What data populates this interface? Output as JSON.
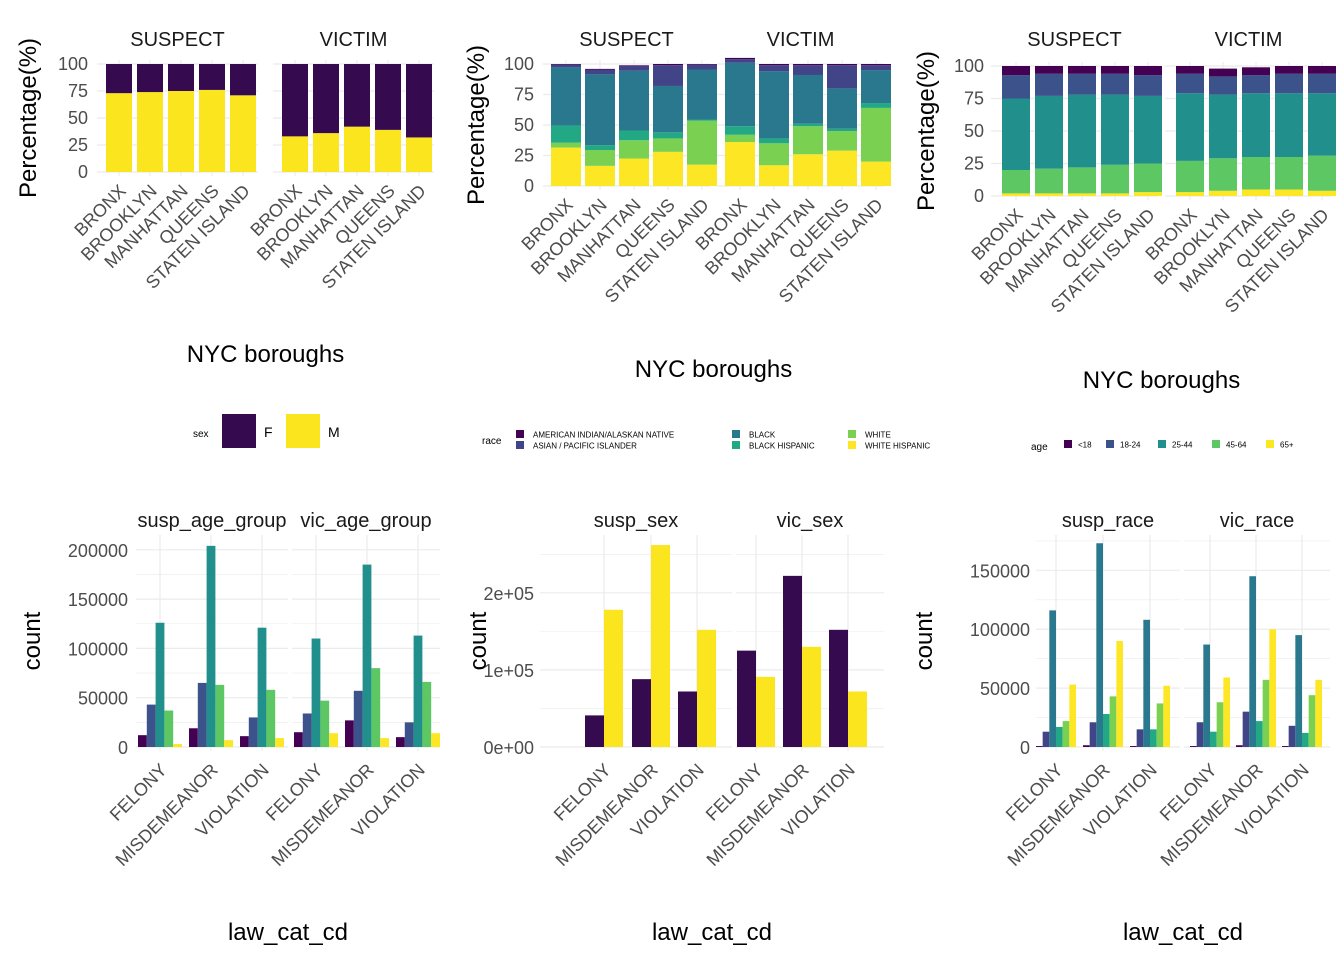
{
  "colors": {
    "sex": {
      "F": "#360A4E",
      "M": "#FAE51F"
    },
    "race": {
      "AMERICAN INDIAN/ALASKAN NATIVE": "#440154",
      "ASIAN / PACIFIC ISLANDER": "#414487",
      "BLACK": "#2A788E",
      "BLACK HISPANIC": "#22A884",
      "WHITE": "#7AD151",
      "WHITE HISPANIC": "#FDE725"
    },
    "race_bar": [
      "#440154",
      "#414487",
      "#2A788E",
      "#22A884",
      "#7AD151",
      "#FDE725"
    ],
    "age": {
      "<18": "#440154",
      "18-24": "#3B528B",
      "25-44": "#21908C",
      "45-64": "#5DC863",
      "65+": "#FDE725"
    },
    "age_bar": [
      "#440154",
      "#3B528B",
      "#21908C",
      "#5DC863",
      "#FDE725"
    ],
    "grid": "#EBEBEB"
  },
  "legends": {
    "sex": {
      "title": "sex",
      "items": [
        "F",
        "M"
      ]
    },
    "race": {
      "title": "race",
      "items": [
        "AMERICAN INDIAN/ALASKAN NATIVE",
        "ASIAN / PACIFIC ISLANDER",
        "BLACK",
        "BLACK HISPANIC",
        "WHITE",
        "WHITE HISPANIC"
      ]
    },
    "age": {
      "title": "age",
      "items": [
        "<18",
        "18-24",
        "25-44",
        "45-64",
        "65+"
      ]
    }
  },
  "chart_data": [
    {
      "type": "bar",
      "stacked": true,
      "facets": [
        "SUSPECT",
        "VICTIM"
      ],
      "categories": [
        "BRONX",
        "BROOKLYN",
        "MANHATTAN",
        "QUEENS",
        "STATEN ISLAND"
      ],
      "xlabel": "NYC boroughs",
      "ylabel": "Percentage(%)",
      "yticks": [
        "0",
        "25",
        "50",
        "75",
        "100"
      ],
      "ylim": [
        0,
        100
      ],
      "fill": "sex",
      "series": [
        {
          "name": "F",
          "values": [
            [
              27,
              26,
              25,
              24,
              29
            ],
            [
              67,
              64,
              58,
              61,
              68
            ]
          ]
        },
        {
          "name": "M",
          "values": [
            [
              73,
              74,
              75,
              76,
              71
            ],
            [
              33,
              36,
              42,
              39,
              32
            ]
          ]
        }
      ]
    },
    {
      "type": "bar",
      "stacked": true,
      "facets": [
        "SUSPECT",
        "VICTIM"
      ],
      "categories": [
        "BRONX",
        "BROOKLYN",
        "MANHATTAN",
        "QUEENS",
        "STATEN ISLAND"
      ],
      "xlabel": "NYC boroughs",
      "ylabel": "Percentage(%)",
      "yticks": [
        "0",
        "25",
        "50",
        "75",
        "100"
      ],
      "ylim": [
        0,
        100
      ],
      "fill": "race",
      "series": [
        {
          "name": "AMERICAN INDIAN/ALASKAN NATIVE",
          "values": [
            [
              0.5,
              0.5,
              0.5,
              1,
              0.5
            ],
            [
              1,
              1,
              1,
              1,
              1
            ]
          ]
        },
        {
          "name": "ASIAN / PACIFIC ISLANDER",
          "values": [
            [
              2,
              4,
              4,
              17,
              4
            ],
            [
              3,
              5,
              8,
              19,
              4
            ]
          ]
        },
        {
          "name": "BLACK",
          "values": [
            [
              48,
              58,
              49,
              38,
              41
            ],
            [
              52,
              55,
              40,
              33,
              27
            ]
          ]
        },
        {
          "name": "BLACK HISPANIC",
          "values": [
            [
              14,
              4,
              8,
              5,
              1
            ],
            [
              7,
              4,
              2,
              2,
              4
            ]
          ]
        },
        {
          "name": "WHITE",
          "values": [
            [
              4,
              13,
              15,
              11,
              36
            ],
            [
              6,
              18,
              23,
              16,
              44
            ]
          ]
        },
        {
          "name": "WHITE HISPANIC",
          "values": [
            [
              31.5,
              16.5,
              22.5,
              28,
              17.5
            ],
            [
              36,
              17,
              26,
              29,
              20
            ]
          ]
        }
      ]
    },
    {
      "type": "bar",
      "stacked": true,
      "facets": [
        "SUSPECT",
        "VICTIM"
      ],
      "categories": [
        "BRONX",
        "BROOKLYN",
        "MANHATTAN",
        "QUEENS",
        "STATEN ISLAND"
      ],
      "xlabel": "NYC boroughs",
      "ylabel": "Percentage(%)",
      "yticks": [
        "0",
        "25",
        "50",
        "75",
        "100"
      ],
      "ylim": [
        0,
        100
      ],
      "fill": "age",
      "series": [
        {
          "name": "<18",
          "values": [
            [
              7,
              6,
              6,
              6,
              7
            ],
            [
              6,
              6,
              6,
              6,
              6
            ]
          ]
        },
        {
          "name": "18-24",
          "values": [
            [
              18,
              17,
              16,
              16,
              16
            ],
            [
              15,
              14,
              14,
              15,
              15
            ]
          ]
        },
        {
          "name": "25-44",
          "values": [
            [
              55,
              56,
              56,
              54,
              52
            ],
            [
              52,
              49,
              49,
              49,
              48
            ]
          ]
        },
        {
          "name": "45-64",
          "values": [
            [
              18,
              19,
              20,
              22,
              22
            ],
            [
              24,
              25,
              25,
              25,
              27
            ]
          ]
        },
        {
          "name": "65+",
          "values": [
            [
              2,
              2,
              2,
              2,
              3
            ],
            [
              3,
              4,
              5,
              5,
              4
            ]
          ]
        }
      ]
    },
    {
      "type": "bar",
      "dodged": true,
      "facets": [
        "susp_age_group",
        "vic_age_group"
      ],
      "categories": [
        "FELONY",
        "MISDEMEANOR",
        "VIOLATION"
      ],
      "xlabel": "law_cat_cd",
      "ylabel": "count",
      "yticks": [
        "0",
        "50000",
        "100000",
        "150000",
        "200000"
      ],
      "ylim": [
        0,
        215000
      ],
      "fill": "age",
      "series": [
        {
          "name": "<18",
          "values": [
            [
              12000,
              19000,
              11000
            ],
            [
              15000,
              27000,
              10000
            ]
          ]
        },
        {
          "name": "18-24",
          "values": [
            [
              43000,
              65000,
              30000
            ],
            [
              34000,
              57000,
              25000
            ]
          ]
        },
        {
          "name": "25-44",
          "values": [
            [
              126000,
              204000,
              121000
            ],
            [
              110000,
              185000,
              113000
            ]
          ]
        },
        {
          "name": "45-64",
          "values": [
            [
              37000,
              63000,
              58000
            ],
            [
              47000,
              80000,
              66000
            ]
          ]
        },
        {
          "name": "65+",
          "values": [
            [
              3000,
              7000,
              9000
            ],
            [
              14000,
              9000,
              14000
            ]
          ]
        }
      ]
    },
    {
      "type": "bar",
      "dodged": true,
      "facets": [
        "susp_sex",
        "vic_sex"
      ],
      "categories": [
        "FELONY",
        "MISDEMEANOR",
        "VIOLATION"
      ],
      "xlabel": "law_cat_cd",
      "ylabel": "count",
      "yticks": [
        "0e+00",
        "1e+05",
        "2e+05"
      ],
      "ytick_values": [
        0,
        100000,
        200000
      ],
      "ylim": [
        0,
        275000
      ],
      "fill": "sex",
      "series": [
        {
          "name": "F",
          "values": [
            [
              41000,
              88000,
              72000
            ],
            [
              125000,
              222000,
              152000
            ]
          ]
        },
        {
          "name": "M",
          "values": [
            [
              178000,
              262000,
              152000
            ],
            [
              91000,
              130000,
              72000
            ]
          ]
        }
      ]
    },
    {
      "type": "bar",
      "dodged": true,
      "facets": [
        "susp_race",
        "vic_race"
      ],
      "categories": [
        "FELONY",
        "MISDEMEANOR",
        "VIOLATION"
      ],
      "xlabel": "law_cat_cd",
      "ylabel": "count",
      "yticks": [
        "0",
        "50000",
        "100000",
        "150000"
      ],
      "ylim": [
        0,
        180000
      ],
      "fill": "race",
      "series": [
        {
          "name": "AMERICAN INDIAN/ALASKAN NATIVE",
          "values": [
            [
              800,
              1500,
              800
            ],
            [
              800,
              1500,
              800
            ]
          ]
        },
        {
          "name": "ASIAN / PACIFIC ISLANDER",
          "values": [
            [
              13000,
              21000,
              15000
            ],
            [
              21000,
              30000,
              18000
            ]
          ]
        },
        {
          "name": "BLACK",
          "values": [
            [
              116000,
              173000,
              108000
            ],
            [
              87000,
              145000,
              95000
            ]
          ]
        },
        {
          "name": "BLACK HISPANIC",
          "values": [
            [
              17000,
              28000,
              15000
            ],
            [
              13000,
              22000,
              12000
            ]
          ]
        },
        {
          "name": "WHITE",
          "values": [
            [
              22000,
              43000,
              37000
            ],
            [
              38000,
              57000,
              44000
            ]
          ]
        },
        {
          "name": "WHITE HISPANIC",
          "values": [
            [
              53000,
              90000,
              52000
            ],
            [
              59000,
              100000,
              57000
            ]
          ]
        }
      ]
    }
  ]
}
